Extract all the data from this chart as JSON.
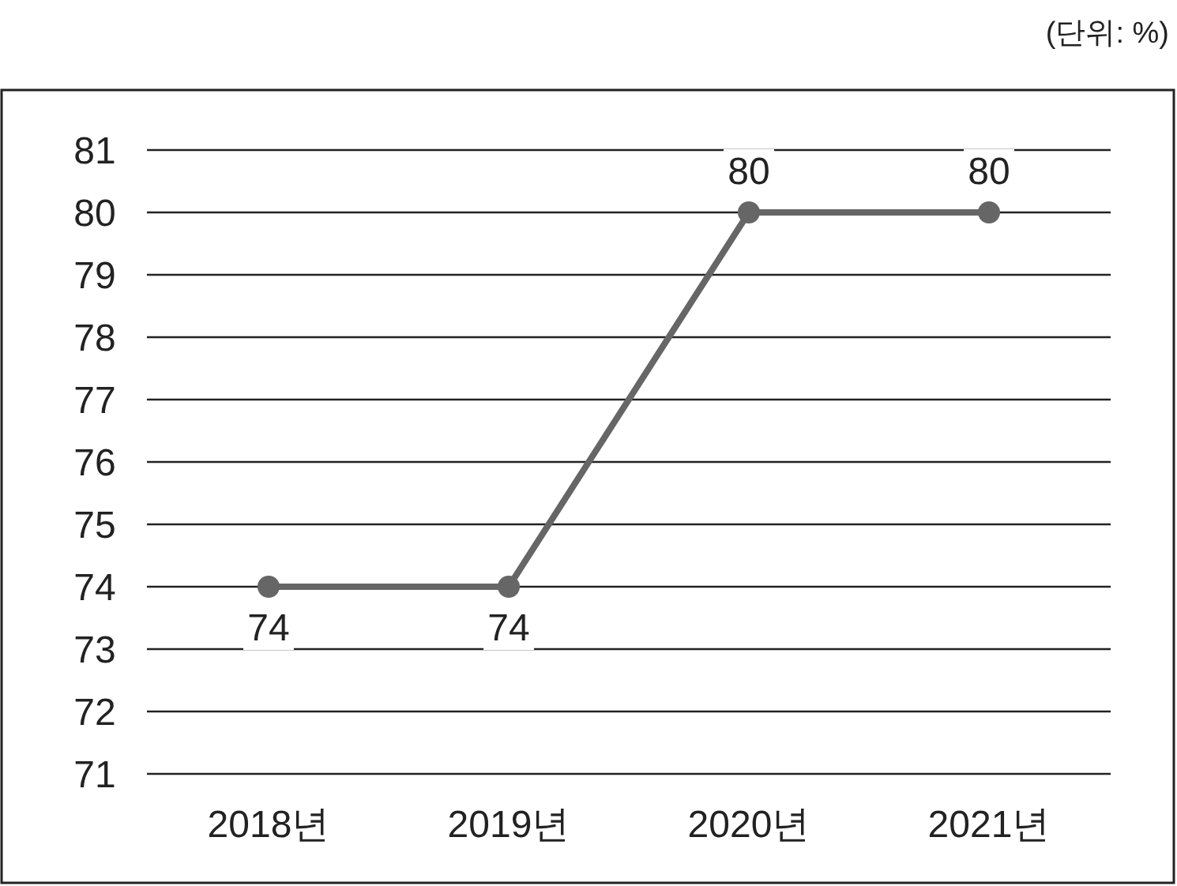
{
  "chart_data": {
    "type": "line",
    "annotations": [
      "(단위: %)"
    ],
    "categories": [
      "2018년",
      "2019년",
      "2020년",
      "2021년"
    ],
    "series": [
      {
        "color": "#666666",
        "values": [
          74,
          74,
          80,
          80
        ]
      }
    ],
    "ylim": [
      71,
      81
    ],
    "yticks": [
      71,
      72,
      73,
      74,
      75,
      76,
      77,
      78,
      79,
      80,
      81
    ],
    "grid": "y",
    "marker": "circle",
    "line_style": "solid",
    "data_labels": true
  }
}
